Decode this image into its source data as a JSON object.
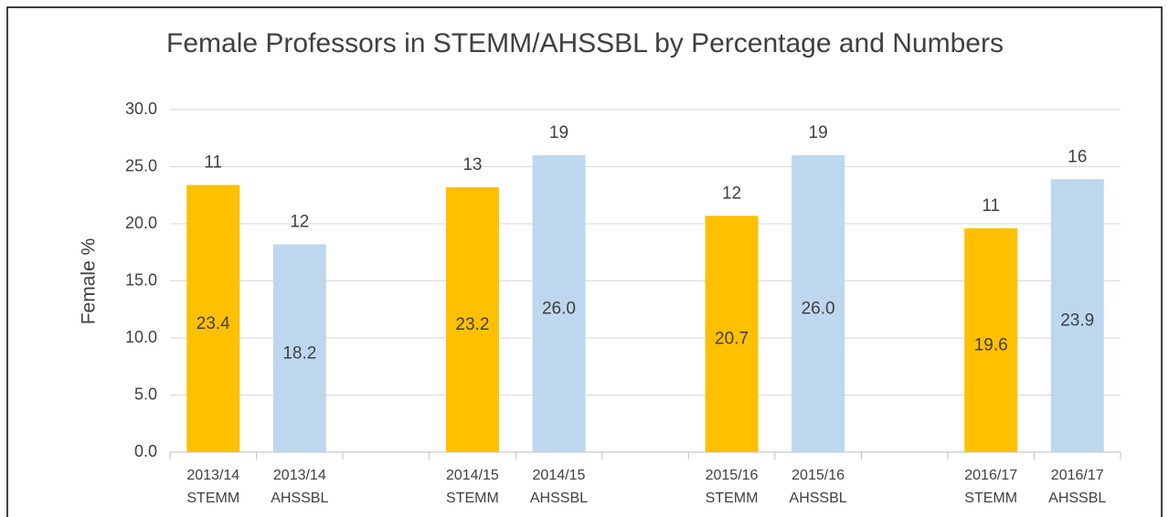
{
  "chart_data": {
    "type": "bar",
    "title": "Female Professors in STEMM/AHSSBL by Percentage and Numbers",
    "y_label": "Female %",
    "categories": [
      [
        "2013/14",
        "STEMM"
      ],
      [
        "2013/14",
        "AHSSBL"
      ],
      null,
      [
        "2014/15",
        "STEMM"
      ],
      [
        "2014/15",
        "AHSSBL"
      ],
      null,
      [
        "2015/16",
        "STEMM"
      ],
      [
        "2015/16",
        "AHSSBL"
      ],
      null,
      [
        "2016/17",
        "STEMM"
      ],
      [
        "2016/17",
        "AHSSBL"
      ]
    ],
    "values": [
      23.4,
      18.2,
      null,
      23.2,
      26.0,
      null,
      20.7,
      26.0,
      null,
      19.6,
      23.9
    ],
    "value_labels": [
      "23.4",
      "18.2",
      null,
      "23.2",
      "26.0",
      null,
      "20.7",
      "26.0",
      null,
      "19.6",
      "23.9"
    ],
    "counts": [
      11,
      12,
      null,
      13,
      19,
      null,
      12,
      19,
      null,
      11,
      16
    ],
    "colors": [
      "#ffc000",
      "#bdd7ee",
      null,
      "#ffc000",
      "#bdd7ee",
      null,
      "#ffc000",
      "#bdd7ee",
      null,
      "#ffc000",
      "#bdd7ee"
    ],
    "ylim": [
      0,
      30
    ],
    "yticks": [
      {
        "value": 0,
        "label": "0.0"
      },
      {
        "value": 5,
        "label": "5.0"
      },
      {
        "value": 10,
        "label": "10.0"
      },
      {
        "value": 15,
        "label": "15.0"
      },
      {
        "value": 20,
        "label": "20.0"
      },
      {
        "value": 25,
        "label": "25.0"
      },
      {
        "value": 30,
        "label": "30.0"
      }
    ],
    "grid": true
  }
}
